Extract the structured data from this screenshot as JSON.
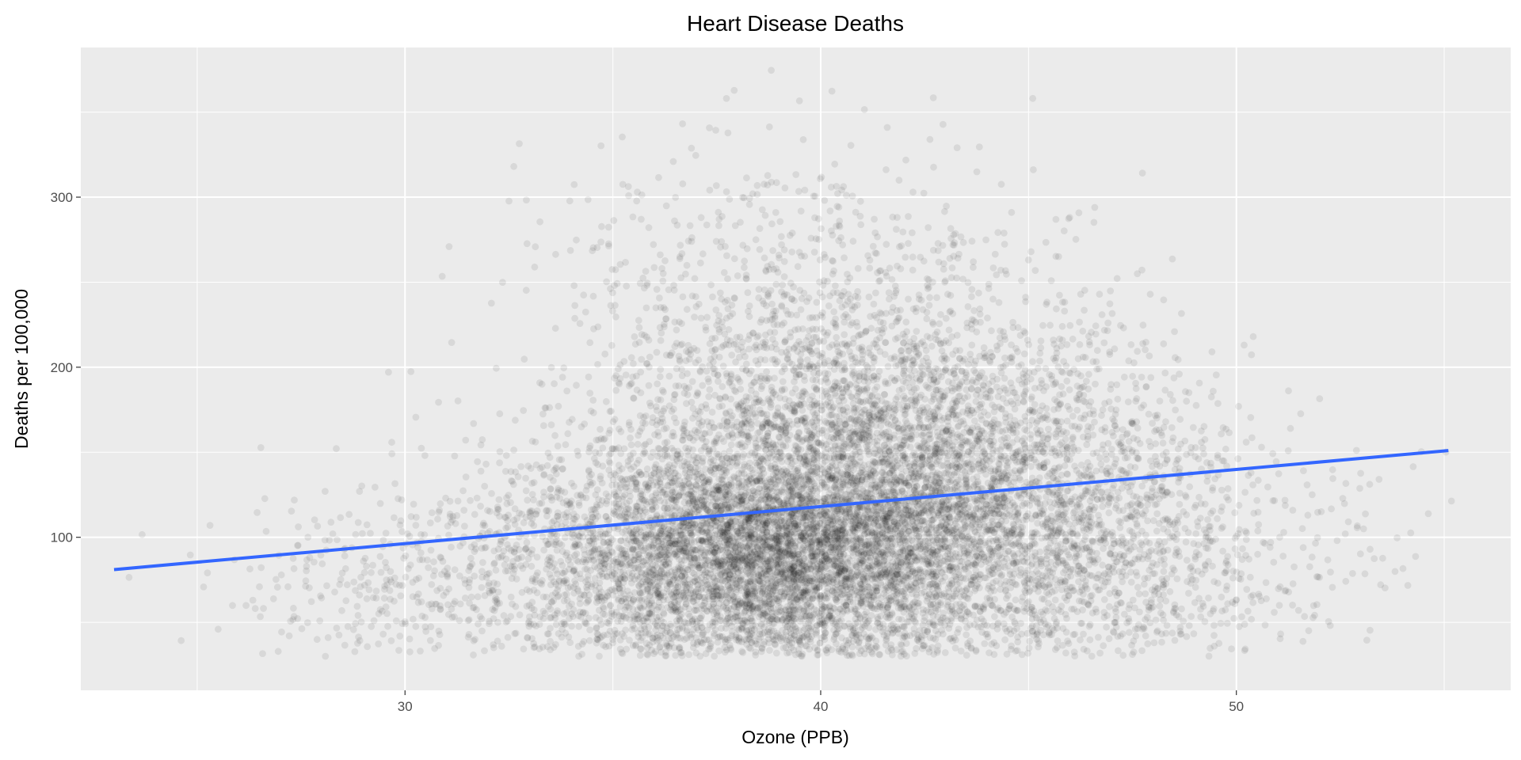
{
  "chart_data": {
    "type": "scatter",
    "title": "Heart Disease Deaths",
    "xlabel": "Ozone (PPB)",
    "ylabel": "Deaths per 100,000",
    "xlim": [
      22.2,
      56.6
    ],
    "ylim": [
      10,
      388
    ],
    "x_ticks": [
      30,
      40,
      50
    ],
    "x_tick_labels": [
      "30",
      "40",
      "50"
    ],
    "y_ticks": [
      100,
      200,
      300
    ],
    "y_tick_labels": [
      "100",
      "200",
      "300"
    ],
    "grid": true,
    "panel_background": "#EBEBEB",
    "grid_color": "#FFFFFF",
    "point_color": "#000000",
    "point_alpha": 0.08,
    "trend_line": {
      "method": "linear fit",
      "color": "#3366FF",
      "x": [
        23.0,
        55.1
      ],
      "y": [
        81,
        151
      ]
    },
    "series": [
      {
        "point_groups": [
          {
            "x_mean": 38.6,
            "x_sd": 2.8,
            "y_mean": 92,
            "y_sd": 32,
            "count": 5200
          },
          {
            "x_mean": 41.0,
            "x_sd": 3.2,
            "y_mean": 150,
            "y_sd": 55,
            "count": 3600
          },
          {
            "x_mean": 43.5,
            "x_sd": 2.6,
            "y_mean": 115,
            "y_sd": 45,
            "count": 1700
          },
          {
            "x_mean": 31.5,
            "x_sd": 2.8,
            "y_mean": 80,
            "y_sd": 30,
            "count": 550
          },
          {
            "x_mean": 47.5,
            "x_sd": 1.7,
            "y_mean": 95,
            "y_sd": 38,
            "count": 600
          },
          {
            "x_mean": 51.5,
            "x_sd": 2.0,
            "y_mean": 100,
            "y_sd": 35,
            "count": 120
          },
          {
            "x_mean": 38.5,
            "x_sd": 3.0,
            "y_mean": 255,
            "y_sd": 45,
            "count": 350
          }
        ]
      }
    ]
  }
}
